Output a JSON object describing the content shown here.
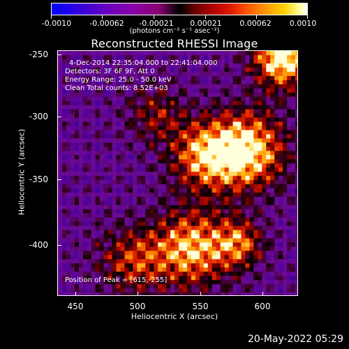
{
  "colorbar": {
    "labels": [
      "-0.0010",
      "-0.00062",
      "-0.00021",
      "0.00021",
      "0.00062",
      "0.0010"
    ],
    "units": "(photons cm⁻² s⁻¹ asec⁻²)"
  },
  "title": "Reconstructed RHESSI Image",
  "annotations": {
    "time_range": "4-Dec-2014 22:35:04.000 to 22:41:04.000",
    "detectors": "Detectors: 3F 6F 9F, Att 0",
    "energy_range": "Energy Range: 25.0 - 50.0 keV",
    "clean_counts": "Clean    Total counts: 8.52E+03",
    "peak_position": "Position of Peak = [615,-255]"
  },
  "axes": {
    "xlabel": "Heliocentric X (arcsec)",
    "ylabel": "Heliocentric Y (arcsec)",
    "xticks": [
      "450",
      "500",
      "550",
      "600"
    ],
    "yticks": [
      "-250",
      "-300",
      "-350",
      "-400"
    ]
  },
  "footer_date": "20-May-2022 05:29",
  "colors": {
    "background": "#000000",
    "text": "#ffffff",
    "hot_peak": "#ffffff",
    "cool_floor": "#4b00a0"
  }
}
